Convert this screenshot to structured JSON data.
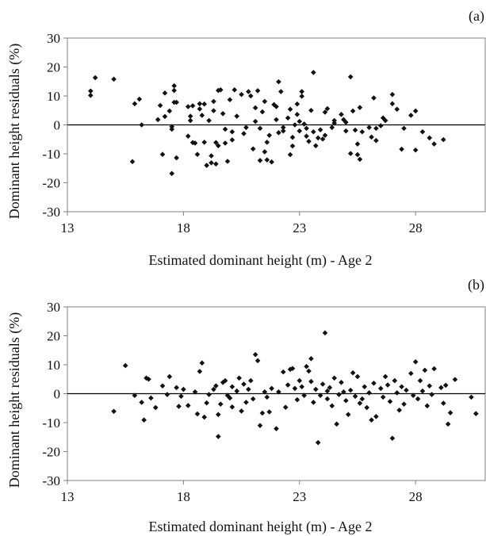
{
  "chart_data": [
    {
      "type": "scatter",
      "panel_label": "(a)",
      "xlabel": "Estimated dominant height (m) - Age 2",
      "ylabel": "Dominant height residuals (%)",
      "xlim": [
        13,
        31
      ],
      "ylim": [
        -30,
        30
      ],
      "xticks": [
        13,
        18,
        23,
        28
      ],
      "yticks": [
        -30,
        -20,
        -10,
        0,
        10,
        20,
        30
      ],
      "marker": "diamond",
      "reference_line": 0,
      "series": [
        {
          "points": [
            [
              14.0,
              11.7
            ],
            [
              14.0,
              10.2
            ],
            [
              14.2,
              16.3
            ],
            [
              15.0,
              15.8
            ],
            [
              15.8,
              -12.7
            ],
            [
              15.9,
              7.3
            ],
            [
              16.1,
              8.9
            ],
            [
              16.2,
              0.0
            ],
            [
              16.9,
              1.8
            ],
            [
              17.0,
              6.7
            ],
            [
              17.1,
              -10.2
            ],
            [
              17.2,
              2.9
            ],
            [
              17.2,
              11.0
            ],
            [
              17.4,
              4.8
            ],
            [
              17.5,
              -1.5
            ],
            [
              17.5,
              -0.6
            ],
            [
              17.5,
              -16.8
            ],
            [
              17.6,
              13.5
            ],
            [
              17.6,
              11.9
            ],
            [
              17.6,
              7.8
            ],
            [
              17.7,
              -11.4
            ],
            [
              17.7,
              7.8
            ],
            [
              18.2,
              -3.9
            ],
            [
              18.2,
              6.3
            ],
            [
              18.3,
              3.0
            ],
            [
              18.3,
              1.5
            ],
            [
              18.4,
              6.6
            ],
            [
              18.4,
              -6.1
            ],
            [
              18.5,
              -6.3
            ],
            [
              18.6,
              -10.2
            ],
            [
              18.7,
              7.3
            ],
            [
              18.7,
              5.5
            ],
            [
              18.8,
              3.3
            ],
            [
              18.9,
              7.2
            ],
            [
              18.9,
              -6.0
            ],
            [
              19.0,
              -14.0
            ],
            [
              19.1,
              1.5
            ],
            [
              19.2,
              -13.1
            ],
            [
              19.2,
              -10.7
            ],
            [
              19.3,
              8.1
            ],
            [
              19.3,
              4.9
            ],
            [
              19.4,
              -6.1
            ],
            [
              19.4,
              -13.5
            ],
            [
              19.5,
              11.9
            ],
            [
              19.5,
              -7.2
            ],
            [
              19.6,
              12.1
            ],
            [
              19.7,
              3.9
            ],
            [
              19.8,
              -6.3
            ],
            [
              19.8,
              -1.5
            ],
            [
              19.9,
              -12.6
            ],
            [
              20.0,
              8.7
            ],
            [
              20.1,
              -5.2
            ],
            [
              20.1,
              -2.4
            ],
            [
              20.2,
              12.1
            ],
            [
              20.3,
              3.0
            ],
            [
              20.5,
              10.5
            ],
            [
              20.6,
              -3.0
            ],
            [
              20.7,
              -0.9
            ],
            [
              20.8,
              11.5
            ],
            [
              20.9,
              10.0
            ],
            [
              21.0,
              -8.3
            ],
            [
              21.1,
              5.9
            ],
            [
              21.1,
              1.2
            ],
            [
              21.2,
              11.8
            ],
            [
              21.3,
              -1.2
            ],
            [
              21.3,
              -12.3
            ],
            [
              21.4,
              4.5
            ],
            [
              21.5,
              -9.3
            ],
            [
              21.5,
              8.1
            ],
            [
              21.6,
              -12.1
            ],
            [
              21.6,
              -6.0
            ],
            [
              21.7,
              -3.6
            ],
            [
              21.8,
              -12.8
            ],
            [
              21.9,
              7.0
            ],
            [
              22.0,
              6.3
            ],
            [
              22.0,
              1.8
            ],
            [
              22.1,
              -2.7
            ],
            [
              22.1,
              14.9
            ],
            [
              22.2,
              11.5
            ],
            [
              22.3,
              -2.1
            ],
            [
              22.3,
              -0.9
            ],
            [
              22.5,
              2.4
            ],
            [
              22.6,
              5.4
            ],
            [
              22.6,
              -10.3
            ],
            [
              22.7,
              -4.3
            ],
            [
              22.7,
              -7.3
            ],
            [
              22.8,
              0.0
            ],
            [
              22.9,
              7.2
            ],
            [
              22.9,
              3.6
            ],
            [
              23.0,
              -2.1
            ],
            [
              23.0,
              1.2
            ],
            [
              23.1,
              9.9
            ],
            [
              23.1,
              11.5
            ],
            [
              23.2,
              0.3
            ],
            [
              23.3,
              -1.2
            ],
            [
              23.3,
              -3.9
            ],
            [
              23.4,
              -5.7
            ],
            [
              23.5,
              5.0
            ],
            [
              23.6,
              18.1
            ],
            [
              23.6,
              -2.4
            ],
            [
              23.7,
              -7.2
            ],
            [
              23.8,
              -4.5
            ],
            [
              23.9,
              -1.7
            ],
            [
              24.0,
              -4.9
            ],
            [
              24.1,
              -3.6
            ],
            [
              24.1,
              4.4
            ],
            [
              24.2,
              5.6
            ],
            [
              24.4,
              -0.9
            ],
            [
              24.5,
              1.5
            ],
            [
              24.5,
              0.6
            ],
            [
              24.8,
              3.6
            ],
            [
              24.9,
              1.8
            ],
            [
              25.0,
              0.9
            ],
            [
              25.0,
              -2.1
            ],
            [
              25.2,
              -9.9
            ],
            [
              25.2,
              16.6
            ],
            [
              25.3,
              4.8
            ],
            [
              25.4,
              -1.8
            ],
            [
              25.5,
              -10.3
            ],
            [
              25.5,
              -6.6
            ],
            [
              25.6,
              -11.9
            ],
            [
              25.6,
              6.0
            ],
            [
              25.7,
              -2.4
            ],
            [
              26.0,
              -0.9
            ],
            [
              26.1,
              -4.2
            ],
            [
              26.2,
              9.3
            ],
            [
              26.3,
              -5.4
            ],
            [
              26.3,
              -1.2
            ],
            [
              26.5,
              -0.3
            ],
            [
              26.6,
              2.4
            ],
            [
              26.7,
              1.5
            ],
            [
              27.0,
              10.5
            ],
            [
              27.0,
              7.3
            ],
            [
              27.2,
              5.4
            ],
            [
              27.4,
              -8.4
            ],
            [
              27.5,
              -1.2
            ],
            [
              27.8,
              3.3
            ],
            [
              28.0,
              4.8
            ],
            [
              28.0,
              -8.7
            ],
            [
              28.3,
              -2.4
            ],
            [
              28.6,
              -4.5
            ],
            [
              28.8,
              -6.6
            ],
            [
              29.2,
              -5.1
            ]
          ]
        }
      ]
    },
    {
      "type": "scatter",
      "panel_label": "(b)",
      "xlabel": "Estimated dominant height (m) - Age 2",
      "ylabel": "Dominant height residuals (%)",
      "xlim": [
        13,
        31
      ],
      "ylim": [
        -30,
        30
      ],
      "xticks": [
        13,
        18,
        23,
        28
      ],
      "yticks": [
        -30,
        -20,
        -10,
        0,
        10,
        20,
        30
      ],
      "marker": "diamond",
      "reference_line": 0,
      "series": [
        {
          "points": [
            [
              15.0,
              -6.1
            ],
            [
              15.5,
              9.7
            ],
            [
              15.9,
              -0.6
            ],
            [
              16.2,
              -3.0
            ],
            [
              16.3,
              -9.1
            ],
            [
              16.4,
              5.4
            ],
            [
              16.5,
              5.0
            ],
            [
              16.6,
              -1.5
            ],
            [
              16.8,
              -4.8
            ],
            [
              17.1,
              2.7
            ],
            [
              17.3,
              -0.3
            ],
            [
              17.4,
              5.9
            ],
            [
              17.7,
              2.1
            ],
            [
              17.8,
              -4.4
            ],
            [
              17.9,
              -0.9
            ],
            [
              18.0,
              1.5
            ],
            [
              18.2,
              -4.1
            ],
            [
              18.5,
              0.6
            ],
            [
              18.6,
              -7.0
            ],
            [
              18.7,
              7.7
            ],
            [
              18.8,
              10.6
            ],
            [
              18.9,
              -8.1
            ],
            [
              19.0,
              -3.2
            ],
            [
              19.1,
              -0.3
            ],
            [
              19.3,
              1.5
            ],
            [
              19.4,
              2.7
            ],
            [
              19.5,
              -14.8
            ],
            [
              19.5,
              -7.2
            ],
            [
              19.6,
              -3.6
            ],
            [
              19.7,
              3.9
            ],
            [
              19.8,
              4.5
            ],
            [
              19.9,
              -0.6
            ],
            [
              20.0,
              -1.5
            ],
            [
              20.1,
              2.4
            ],
            [
              20.1,
              -4.6
            ],
            [
              20.3,
              0.9
            ],
            [
              20.4,
              5.4
            ],
            [
              20.5,
              -6.0
            ],
            [
              20.6,
              3.3
            ],
            [
              20.7,
              -3.0
            ],
            [
              20.8,
              1.5
            ],
            [
              20.9,
              4.5
            ],
            [
              21.0,
              -1.8
            ],
            [
              21.1,
              13.5
            ],
            [
              21.2,
              11.4
            ],
            [
              21.3,
              -11.0
            ],
            [
              21.4,
              -6.7
            ],
            [
              21.5,
              0.6
            ],
            [
              21.6,
              -1.2
            ],
            [
              21.7,
              -6.3
            ],
            [
              21.8,
              1.8
            ],
            [
              22.0,
              -12.1
            ],
            [
              22.1,
              0.6
            ],
            [
              22.3,
              7.5
            ],
            [
              22.4,
              -4.7
            ],
            [
              22.5,
              3.0
            ],
            [
              22.6,
              8.4
            ],
            [
              22.7,
              8.7
            ],
            [
              22.8,
              1.8
            ],
            [
              22.9,
              -2.1
            ],
            [
              23.0,
              4.5
            ],
            [
              23.1,
              2.4
            ],
            [
              23.2,
              -0.6
            ],
            [
              23.3,
              9.4
            ],
            [
              23.4,
              7.8
            ],
            [
              23.5,
              12.1
            ],
            [
              23.5,
              4.2
            ],
            [
              23.6,
              -3.0
            ],
            [
              23.7,
              1.5
            ],
            [
              23.8,
              -16.9
            ],
            [
              23.9,
              -0.6
            ],
            [
              24.0,
              3.3
            ],
            [
              24.1,
              21.0
            ],
            [
              24.2,
              0.9
            ],
            [
              24.2,
              -1.8
            ],
            [
              24.3,
              2.1
            ],
            [
              24.4,
              -4.2
            ],
            [
              24.5,
              5.4
            ],
            [
              24.6,
              -10.5
            ],
            [
              24.7,
              -0.3
            ],
            [
              24.8,
              3.9
            ],
            [
              24.9,
              0.6
            ],
            [
              25.0,
              -2.4
            ],
            [
              25.1,
              -7.2
            ],
            [
              25.2,
              1.2
            ],
            [
              25.3,
              7.2
            ],
            [
              25.4,
              -0.9
            ],
            [
              25.5,
              5.9
            ],
            [
              25.6,
              -3.3
            ],
            [
              25.7,
              -1.8
            ],
            [
              25.8,
              2.4
            ],
            [
              25.9,
              -4.8
            ],
            [
              26.0,
              0.3
            ],
            [
              26.1,
              -9.1
            ],
            [
              26.2,
              3.6
            ],
            [
              26.3,
              -7.9
            ],
            [
              26.5,
              1.8
            ],
            [
              26.6,
              -1.2
            ],
            [
              26.7,
              5.9
            ],
            [
              26.8,
              3.0
            ],
            [
              26.9,
              -2.7
            ],
            [
              27.0,
              -15.4
            ],
            [
              27.1,
              4.5
            ],
            [
              27.2,
              0.3
            ],
            [
              27.3,
              -5.7
            ],
            [
              27.4,
              2.4
            ],
            [
              27.5,
              -3.6
            ],
            [
              27.6,
              1.2
            ],
            [
              27.8,
              7.0
            ],
            [
              27.9,
              -0.6
            ],
            [
              28.0,
              11.0
            ],
            [
              28.1,
              -1.8
            ],
            [
              28.2,
              4.5
            ],
            [
              28.3,
              0.9
            ],
            [
              28.4,
              8.1
            ],
            [
              28.5,
              -4.2
            ],
            [
              28.6,
              2.7
            ],
            [
              28.7,
              -0.3
            ],
            [
              28.8,
              8.6
            ],
            [
              29.1,
              2.1
            ],
            [
              29.2,
              -3.3
            ],
            [
              29.3,
              2.9
            ],
            [
              29.4,
              -10.5
            ],
            [
              29.5,
              -6.6
            ],
            [
              29.7,
              4.9
            ],
            [
              30.4,
              -1.2
            ],
            [
              30.6,
              -6.9
            ]
          ]
        }
      ]
    }
  ]
}
